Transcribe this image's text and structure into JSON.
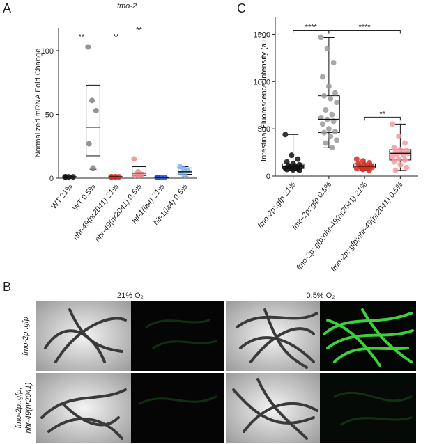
{
  "panel_labels": [
    "A",
    "B",
    "C"
  ],
  "chart_data": [
    {
      "type": "box",
      "title": "fmo-2",
      "ylabel": "Normalized mRNA Fold Change",
      "categories": [
        "WT 21%",
        "WT 0.5%",
        "nhr-49(nr2041) 21%",
        "nhr-49(nr2041) 0.5%",
        "hif-1(ia4) 21%",
        "hif-1(ia4) 0.5%"
      ],
      "colors": [
        "#111111",
        "#808080",
        "#d42a1e",
        "#f08a8f",
        "#1f4fc4",
        "#7fb2ee"
      ],
      "boxes": [
        {
          "min": 0.8,
          "q1": 0.9,
          "median": 1,
          "q3": 1.1,
          "max": 1.2,
          "points": [
            1,
            1,
            1,
            1
          ]
        },
        {
          "min": 7,
          "q1": 17.5,
          "median": 40,
          "q3": 73,
          "max": 103,
          "points": [
            103,
            61,
            53,
            27,
            8
          ]
        },
        {
          "min": 0.8,
          "q1": 0.9,
          "median": 1,
          "q3": 1.1,
          "max": 1.2,
          "points": [
            1,
            1,
            1,
            1,
            1
          ]
        },
        {
          "min": 1,
          "q1": 2,
          "median": 4,
          "q3": 9,
          "max": 15,
          "points": [
            15,
            5,
            3,
            2,
            2
          ]
        },
        {
          "min": 0.3,
          "q1": 0.4,
          "median": 0.5,
          "q3": 0.6,
          "max": 0.7,
          "points": [
            0.5,
            0.5,
            0.5,
            0.5
          ]
        },
        {
          "min": 1,
          "q1": 3,
          "median": 5,
          "q3": 8,
          "max": 9,
          "points": [
            9,
            7,
            6,
            4,
            2
          ]
        }
      ],
      "ylim": [
        0,
        118
      ],
      "yticks": [
        0,
        50,
        100
      ],
      "significance": [
        {
          "label": "**",
          "pair": [
            0,
            1
          ]
        },
        {
          "label": "**",
          "pair": [
            1,
            3
          ]
        },
        {
          "label": "**",
          "pair": [
            1,
            5
          ]
        }
      ]
    },
    {
      "type": "box",
      "ylabel": "Intestinal Fluorescence Intensity (a.u.)",
      "categories": [
        "fmo-2p::gfp 21%",
        "fmo-2p::gfp 0.5%",
        "fmo-2p::gfp;nhr-49(nr2041) 21%",
        "fmo-2p::gfp;nhr-49(nr2041) 0.5%"
      ],
      "colors": [
        "#111111",
        "#9a9a9a",
        "#d42a1e",
        "#f59aa0"
      ],
      "boxes": [
        {
          "min": 60,
          "q1": 80,
          "median": 100,
          "q3": 130,
          "max": 440,
          "points": [
            440,
            220,
            180,
            150,
            130,
            120,
            110,
            105,
            100,
            95,
            90,
            85,
            80,
            75,
            70,
            65,
            60
          ]
        },
        {
          "min": 300,
          "q1": 460,
          "median": 600,
          "q3": 850,
          "max": 1470,
          "points": [
            1470,
            1350,
            1200,
            1050,
            950,
            880,
            850,
            820,
            780,
            700,
            650,
            620,
            600,
            580,
            550,
            500,
            470,
            460,
            420,
            380,
            350,
            300
          ]
        },
        {
          "min": 60,
          "q1": 85,
          "median": 105,
          "q3": 130,
          "max": 180,
          "points": [
            180,
            160,
            140,
            130,
            120,
            110,
            105,
            100,
            95,
            90,
            85,
            80,
            70,
            60
          ]
        },
        {
          "min": 60,
          "q1": 170,
          "median": 240,
          "q3": 280,
          "max": 550,
          "points": [
            550,
            420,
            350,
            300,
            280,
            270,
            260,
            250,
            240,
            230,
            220,
            200,
            180,
            170,
            150,
            120,
            90,
            60
          ]
        }
      ],
      "ylim": [
        0,
        1680
      ],
      "yticks": [
        0,
        500,
        1000,
        1500
      ],
      "significance": [
        {
          "label": "****",
          "pair": [
            0,
            1
          ]
        },
        {
          "label": "****",
          "pair": [
            1,
            3
          ]
        },
        {
          "label": "**",
          "pair": [
            2,
            3
          ]
        }
      ]
    }
  ],
  "panel_b": {
    "columns": [
      "21% O₂",
      "0.5% O₂"
    ],
    "rows": [
      [
        "fmo-2p::gfp"
      ],
      [
        "fmo-2p::gfp;",
        "nhr-49(nr2041)"
      ]
    ]
  }
}
